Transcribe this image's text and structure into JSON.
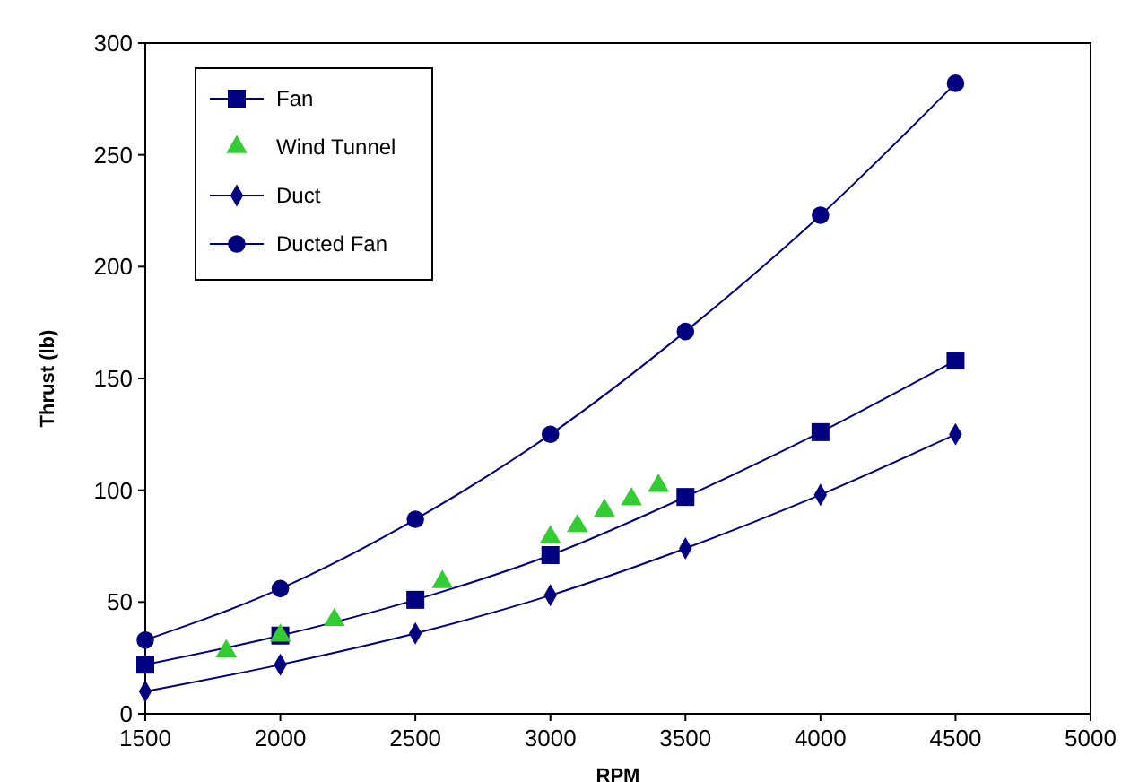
{
  "chart_data": {
    "type": "line",
    "xlabel": "RPM",
    "ylabel": "Thrust (lb)",
    "xlim": [
      1500,
      5000
    ],
    "xticks": [
      1500,
      2000,
      2500,
      3000,
      3500,
      4000,
      4500,
      5000
    ],
    "ylim": [
      0,
      300
    ],
    "yticks": [
      0,
      50,
      100,
      150,
      200,
      250,
      300
    ],
    "grid": false,
    "legend": "top left",
    "series": [
      {
        "name": "Fan",
        "color": "#000080",
        "marker": "square",
        "x": [
          1500,
          2000,
          2500,
          3000,
          3500,
          4000,
          4500
        ],
        "values": [
          22,
          35,
          51,
          71,
          97,
          126,
          158
        ]
      },
      {
        "name": "Wind Tunnel",
        "type": "scatter",
        "color": "#33cc33",
        "marker": "triangle",
        "x": [
          1800,
          2000,
          2200,
          2600,
          3000,
          3100,
          3200,
          3300,
          3400
        ],
        "values": [
          28,
          35,
          42,
          59,
          79,
          84,
          91,
          96,
          102
        ]
      },
      {
        "name": "Duct",
        "color": "#000080",
        "marker": "diamond",
        "x": [
          1500,
          2000,
          2500,
          3000,
          3500,
          4000,
          4500
        ],
        "values": [
          10,
          22,
          36,
          53,
          74,
          98,
          125
        ]
      },
      {
        "name": "Ducted Fan",
        "color": "#000080",
        "marker": "circle",
        "x": [
          1500,
          2000,
          2500,
          3000,
          3500,
          4000,
          4500
        ],
        "values": [
          33,
          56,
          87,
          125,
          171,
          223,
          282
        ]
      }
    ]
  }
}
